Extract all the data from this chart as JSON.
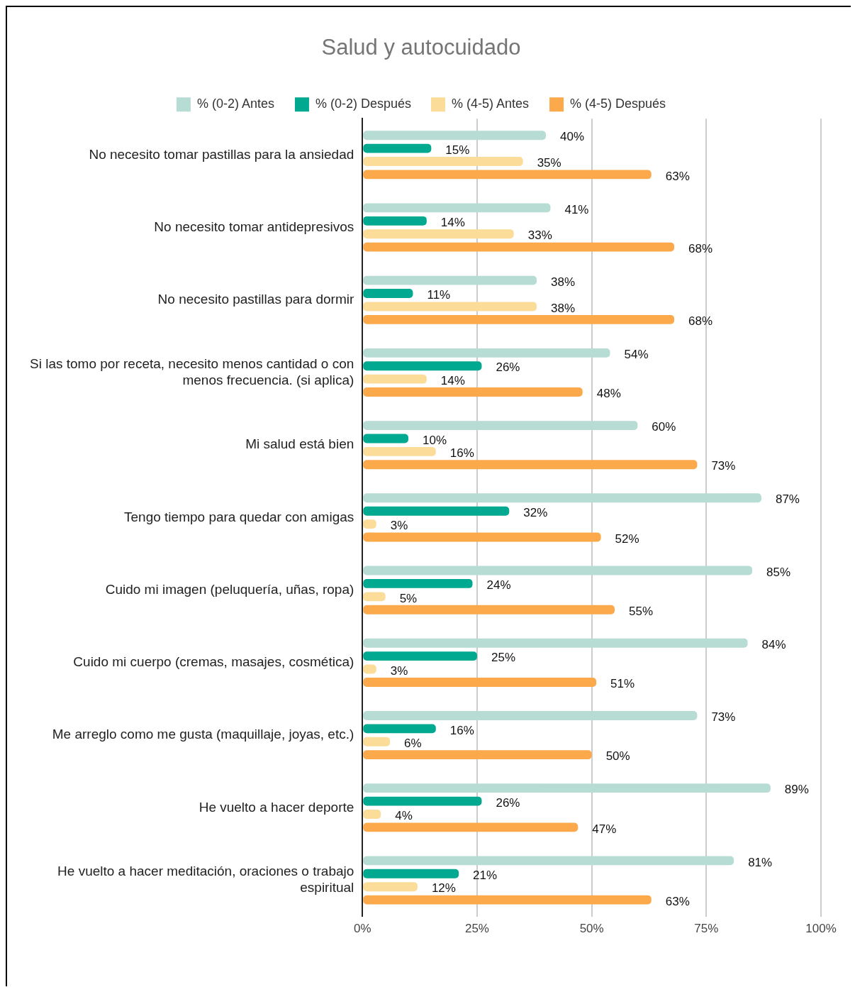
{
  "chart_data": {
    "type": "bar",
    "orientation": "horizontal",
    "title": "Salud y autocuidado",
    "categories": [
      "No necesito tomar pastillas para la ansiedad",
      "No necesito tomar antidepresivos",
      "No necesito pastillas para dormir",
      "Si las tomo por receta, necesito menos cantidad o con menos frecuencia. (si aplica)",
      "Mi salud está bien",
      "Tengo tiempo para quedar con amigas",
      "Cuido mi imagen (peluquería, uñas, ropa)",
      "Cuido mi cuerpo (cremas, masajes, cosmética)",
      "Me arreglo como me gusta (maquillaje, joyas, etc.)",
      "He vuelto a hacer deporte",
      "He vuelto a hacer meditación, oraciones o trabajo espiritual"
    ],
    "series": [
      {
        "name": "% (0-2) Antes",
        "color": "#b7dcd4",
        "values": [
          40,
          41,
          38,
          54,
          60,
          87,
          85,
          84,
          73,
          89,
          81
        ],
        "value_labels": [
          "40%",
          "41%",
          "38%",
          "54%",
          "60%",
          "87%",
          "85%",
          "84%",
          "73%",
          "89%",
          "81%"
        ]
      },
      {
        "name": "% (0-2) Después",
        "color": "#00a98f",
        "values": [
          15,
          14,
          11,
          26,
          10,
          32,
          24,
          25,
          16,
          26,
          21
        ],
        "value_labels": [
          "15%",
          "14%",
          "11%",
          "26%",
          "10%",
          "32%",
          "24%",
          "25%",
          "16%",
          "26%",
          "21%"
        ]
      },
      {
        "name": "% (4-5) Antes",
        "color": "#fbdc98",
        "values": [
          35,
          33,
          38,
          14,
          16,
          3,
          5,
          3,
          6,
          4,
          12
        ],
        "value_labels": [
          "35%",
          "33%",
          "38%",
          "14%",
          "16%",
          "3%",
          "5%",
          "3%",
          "6%",
          "4%",
          "12%"
        ]
      },
      {
        "name": "% (4-5) Después",
        "color": "#fba94b",
        "values": [
          63,
          68,
          68,
          48,
          73,
          52,
          55,
          51,
          50,
          47,
          63
        ],
        "value_labels": [
          "63%",
          "68%",
          "68%",
          "48%",
          "73%",
          "52%",
          "55%",
          "51%",
          "50%",
          "47%",
          "63%"
        ]
      }
    ],
    "xlim": [
      0,
      100
    ],
    "xticks": [
      {
        "value": 0,
        "label": "0%"
      },
      {
        "value": 25,
        "label": "25%"
      },
      {
        "value": 50,
        "label": "50%"
      },
      {
        "value": 75,
        "label": "75%"
      },
      {
        "value": 100,
        "label": "100%"
      }
    ],
    "grid": "x",
    "legend": "top"
  }
}
